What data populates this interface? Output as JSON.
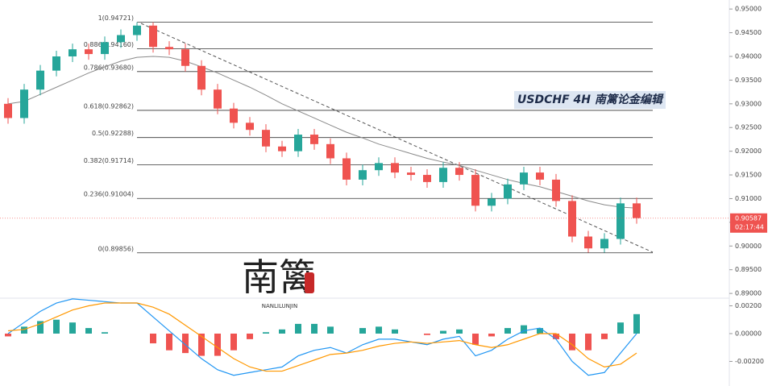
{
  "chart_data": [
    {
      "type": "candlestick",
      "annotation": "USDCHF  4H  南篱论金编辑",
      "watermark": "南篱",
      "watermark_sub": "NANLILUNJIN",
      "up_color": "#26a69a",
      "down_color": "#ef5350",
      "open": [
        0.93,
        0.927,
        0.933,
        0.937,
        0.94,
        0.9415,
        0.9405,
        0.943,
        0.9445,
        0.9465,
        0.942,
        0.9415,
        0.938,
        0.933,
        0.929,
        0.926,
        0.9245,
        0.921,
        0.92,
        0.9235,
        0.9215,
        0.9185,
        0.914,
        0.916,
        0.9175,
        0.9155,
        0.915,
        0.9135,
        0.9165,
        0.915,
        0.9085,
        0.91,
        0.913,
        0.9155,
        0.914,
        0.9095,
        0.902,
        0.8995,
        0.9015,
        0.909
      ],
      "high": [
        0.9312,
        0.9342,
        0.9382,
        0.9412,
        0.9427,
        0.9427,
        0.9442,
        0.9457,
        0.9472,
        0.9472,
        0.9432,
        0.9427,
        0.9392,
        0.9342,
        0.9302,
        0.9272,
        0.9257,
        0.9222,
        0.9247,
        0.9247,
        0.9227,
        0.9197,
        0.9172,
        0.9187,
        0.9187,
        0.9167,
        0.9162,
        0.9177,
        0.9177,
        0.9162,
        0.9112,
        0.9142,
        0.9167,
        0.9167,
        0.9152,
        0.9107,
        0.9032,
        0.9027,
        0.9102,
        0.9102
      ],
      "low": [
        0.9258,
        0.9258,
        0.9318,
        0.9358,
        0.9388,
        0.9393,
        0.9393,
        0.9418,
        0.9433,
        0.9408,
        0.9403,
        0.9368,
        0.9318,
        0.9278,
        0.9248,
        0.9233,
        0.9198,
        0.9188,
        0.9188,
        0.9203,
        0.9173,
        0.9128,
        0.9128,
        0.9148,
        0.9143,
        0.9138,
        0.9123,
        0.9123,
        0.9138,
        0.9073,
        0.9073,
        0.9088,
        0.9118,
        0.9128,
        0.9083,
        0.9008,
        0.8986,
        0.8986,
        0.9003,
        0.9047
      ],
      "close": [
        0.927,
        0.933,
        0.937,
        0.94,
        0.9415,
        0.9405,
        0.943,
        0.9445,
        0.9465,
        0.942,
        0.9415,
        0.938,
        0.933,
        0.929,
        0.926,
        0.9245,
        0.921,
        0.92,
        0.9235,
        0.9215,
        0.9185,
        0.914,
        0.916,
        0.9175,
        0.9155,
        0.915,
        0.9135,
        0.9165,
        0.915,
        0.9085,
        0.91,
        0.913,
        0.9155,
        0.914,
        0.9095,
        0.902,
        0.8995,
        0.9015,
        0.909,
        0.9059
      ],
      "overlays": [
        {
          "color": "#8a8a8a",
          "values": [
            0.93,
            0.9305,
            0.932,
            0.9335,
            0.935,
            0.9365,
            0.9378,
            0.939,
            0.9398,
            0.94,
            0.9398,
            0.939,
            0.9378,
            0.9365,
            0.935,
            0.9335,
            0.9318,
            0.93,
            0.9285,
            0.927,
            0.9255,
            0.924,
            0.9228,
            0.9215,
            0.9205,
            0.9195,
            0.9185,
            0.9177,
            0.917,
            0.916,
            0.915,
            0.914,
            0.9132,
            0.9125,
            0.9115,
            0.9105,
            0.9095,
            0.9087,
            0.9082,
            0.908
          ]
        }
      ],
      "fib_levels": [
        {
          "value": 0.94721,
          "label": "1(0.94721)"
        },
        {
          "value": 0.9416,
          "label": "0.886(0.94160)"
        },
        {
          "value": 0.9368,
          "label": "0.786(0.93680)"
        },
        {
          "value": 0.92862,
          "label": "0.618(0.92862)"
        },
        {
          "value": 0.92288,
          "label": "0.5(0.92288)"
        },
        {
          "value": 0.91714,
          "label": "0.382(0.91714)"
        },
        {
          "value": 0.91004,
          "label": "0.236(0.91004)"
        },
        {
          "value": 0.89856,
          "label": "0(0.89856)"
        }
      ],
      "current_price": 0.90587,
      "countdown": "02:17:44",
      "ylim": [
        0.889,
        0.9519
      ],
      "yticks": [
        {
          "value": 0.95,
          "label": "0.95000"
        },
        {
          "value": 0.945,
          "label": "0.94500"
        },
        {
          "value": 0.94,
          "label": "0.94000"
        },
        {
          "value": 0.935,
          "label": "0.93500"
        },
        {
          "value": 0.93,
          "label": "0.93000"
        },
        {
          "value": 0.925,
          "label": "0.92500"
        },
        {
          "value": 0.92,
          "label": "0.92000"
        },
        {
          "value": 0.915,
          "label": "0.91500"
        },
        {
          "value": 0.91,
          "label": "0.91000"
        },
        {
          "value": 0.905,
          "label": "0.90500"
        },
        {
          "value": 0.9,
          "label": "0.90000"
        },
        {
          "value": 0.895,
          "label": "0.89500"
        },
        {
          "value": 0.89,
          "label": "0.89000"
        }
      ]
    },
    {
      "type": "macd",
      "up_color": "#26a69a",
      "down_color": "#ef5350",
      "histogram": [
        -0.0002,
        0.0005,
        0.0009,
        0.001,
        0.0008,
        0.0004,
        0.0001,
        0.0,
        0.0,
        -0.0007,
        -0.0012,
        -0.0014,
        -0.0016,
        -0.0016,
        -0.0012,
        -0.0004,
        0.0001,
        0.0003,
        0.0007,
        0.0007,
        0.0005,
        0.0,
        0.0004,
        0.0005,
        0.0003,
        0.0,
        -0.0001,
        0.0002,
        0.0003,
        -0.0008,
        -0.0002,
        0.0004,
        0.0006,
        0.0004,
        -0.0004,
        -0.0012,
        -0.0012,
        -0.0004,
        0.0008,
        0.0014
      ],
      "lines": [
        {
          "color": "#2196f3",
          "values": [
            0.0,
            0.0008,
            0.0016,
            0.0022,
            0.0025,
            0.0024,
            0.0023,
            0.0022,
            0.0022,
            0.0012,
            0.0002,
            -0.0008,
            -0.0018,
            -0.0026,
            -0.003,
            -0.0028,
            -0.0026,
            -0.0024,
            -0.0016,
            -0.0012,
            -0.001,
            -0.0014,
            -0.0008,
            -0.0004,
            -0.0004,
            -0.0006,
            -0.0008,
            -0.0004,
            -0.0002,
            -0.0016,
            -0.0012,
            -0.0004,
            0.0002,
            0.0004,
            -0.0004,
            -0.002,
            -0.003,
            -0.0028,
            -0.0014,
            0.0
          ]
        },
        {
          "color": "#ff9800",
          "values": [
            0.0002,
            0.0003,
            0.0007,
            0.0012,
            0.0017,
            0.002,
            0.0022,
            0.0022,
            0.0022,
            0.0019,
            0.0014,
            0.0006,
            -0.0002,
            -0.001,
            -0.0018,
            -0.0024,
            -0.0027,
            -0.0027,
            -0.0023,
            -0.0019,
            -0.0015,
            -0.0014,
            -0.0012,
            -0.0009,
            -0.0007,
            -0.0006,
            -0.0007,
            -0.0006,
            -0.0005,
            -0.0008,
            -0.001,
            -0.0008,
            -0.0004,
            0.0,
            0.0,
            -0.0008,
            -0.0018,
            -0.0024,
            -0.0022,
            -0.0014
          ]
        }
      ],
      "ylim": [
        -0.00377,
        0.00255
      ],
      "yticks": [
        {
          "value": 0.002,
          "label": "0.00200"
        },
        {
          "value": 0,
          "label": "0.00000"
        },
        {
          "value": -0.002,
          "label": "-0.00200"
        }
      ]
    }
  ]
}
